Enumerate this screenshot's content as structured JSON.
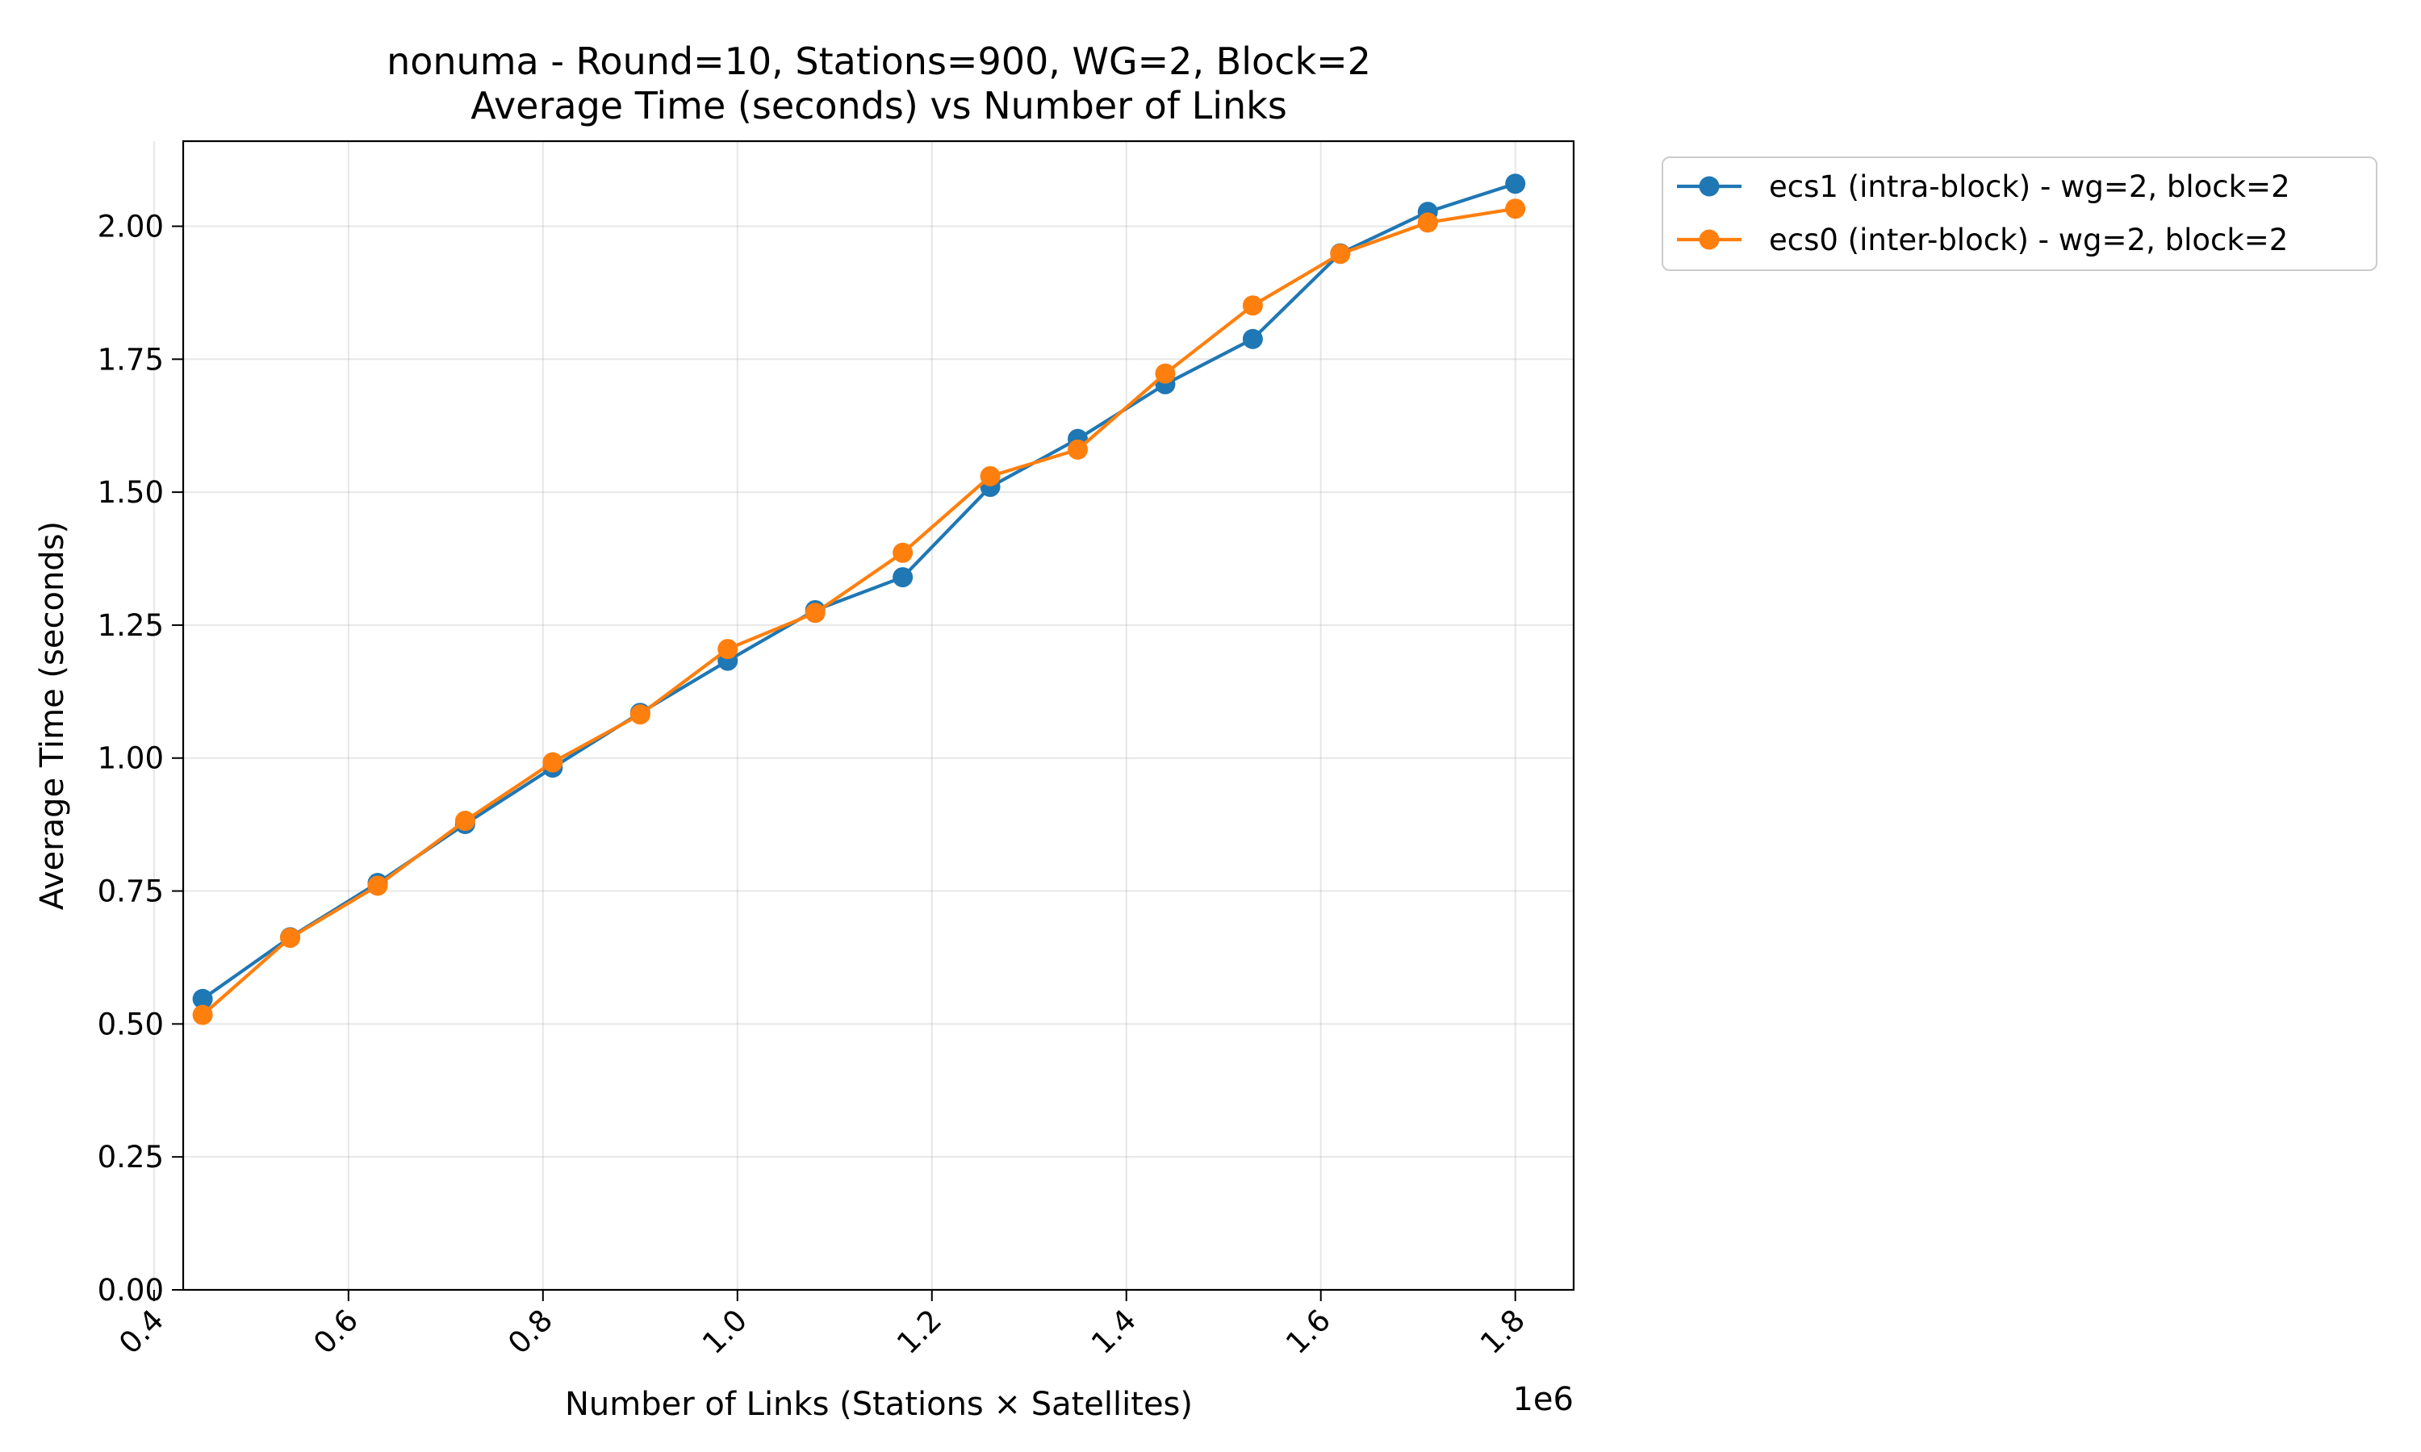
{
  "chart_data": {
    "type": "line",
    "title": "nonuma - Round=10, Stations=900, WG=2, Block=2",
    "subtitle": "Average Time (seconds) vs Number of Links",
    "xlabel": "Number of Links (Stations × Satellites)",
    "ylabel": "Average Time (seconds)",
    "x_offset_label": "1e6",
    "xlim": [
      0.43,
      1.86
    ],
    "ylim": [
      0.0,
      2.16
    ],
    "x_ticks": [
      0.4,
      0.6,
      0.8,
      1.0,
      1.2,
      1.4,
      1.6,
      1.8
    ],
    "x_tick_labels": [
      "0.4",
      "0.6",
      "0.8",
      "1.0",
      "1.2",
      "1.4",
      "1.6",
      "1.8"
    ],
    "y_ticks": [
      0.0,
      0.25,
      0.5,
      0.75,
      1.0,
      1.25,
      1.5,
      1.75,
      2.0
    ],
    "y_tick_labels": [
      "0.00",
      "0.25",
      "0.50",
      "0.75",
      "1.00",
      "1.25",
      "1.50",
      "1.75",
      "2.00"
    ],
    "grid": true,
    "legend_position": "outside-top-right",
    "x": [
      0.45,
      0.54,
      0.63,
      0.72,
      0.81,
      0.9,
      0.99,
      1.08,
      1.17,
      1.26,
      1.35,
      1.44,
      1.53,
      1.62,
      1.71,
      1.8
    ],
    "series": [
      {
        "name": "ecs1 (intra-block) - wg=2, block=2",
        "color": "#1f77b4",
        "values": [
          0.547,
          0.663,
          0.765,
          0.876,
          0.982,
          1.085,
          1.183,
          1.278,
          1.34,
          1.51,
          1.6,
          1.703,
          1.788,
          1.949,
          2.027,
          2.08
        ]
      },
      {
        "name": "ecs0 (inter-block) - wg=2, block=2",
        "color": "#ff7f0e",
        "values": [
          0.517,
          0.662,
          0.76,
          0.882,
          0.992,
          1.082,
          1.205,
          1.273,
          1.386,
          1.53,
          1.58,
          1.723,
          1.851,
          1.948,
          2.007,
          2.033
        ]
      }
    ]
  }
}
